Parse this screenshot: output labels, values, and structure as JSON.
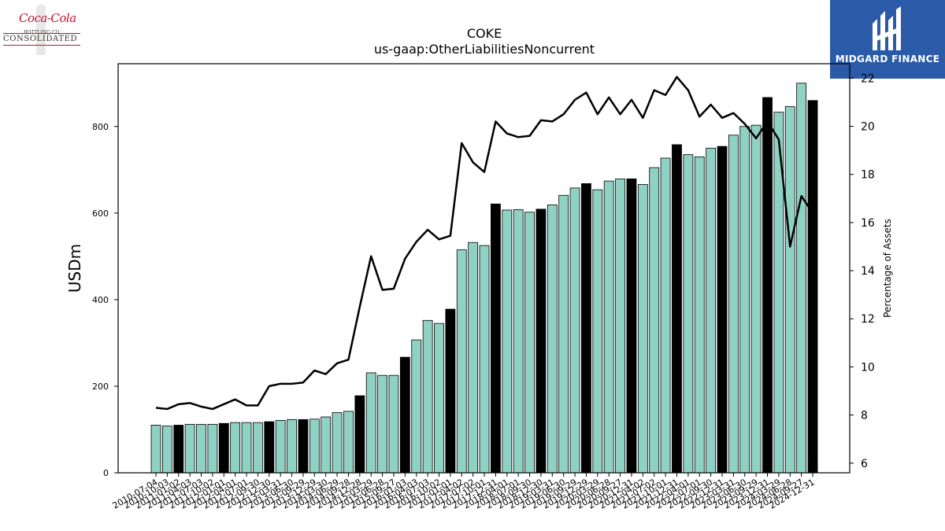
{
  "header": {
    "brand_left": {
      "script": "Coca-Cola",
      "sub": "BOTTLING CO.",
      "name": "CONSOLIDATED"
    },
    "brand_right": {
      "name": "MIDGARD FINANCE",
      "bg_color": "#2b5aa8",
      "icon": "mf-monogram-icon"
    }
  },
  "chart_data": {
    "type": "bar",
    "title": "COKE",
    "subtitle": "us-gaap:OtherLiabilitiesNoncurrent",
    "ylabel": "USDm",
    "y2label": "Percentage of Assets",
    "ylim": [
      0,
      945
    ],
    "y2lim": [
      5.6,
      22.6
    ],
    "yticks": [
      0,
      200,
      400,
      600,
      800
    ],
    "y2ticks": [
      6,
      8,
      10,
      12,
      14,
      16,
      18,
      20,
      22
    ],
    "grid": false,
    "colors": {
      "bar": "#8fd2c4",
      "bar_highlight": "#000000",
      "line": "#000000",
      "edge": "#000000"
    },
    "categories": [
      "2010-07-04",
      "2010-10-03",
      "2011-01-02",
      "2011-04-03",
      "2011-07-03",
      "2011-10-02",
      "2012-01-01",
      "2012-04-01",
      "2012-07-01",
      "2012-09-30",
      "2012-12-30",
      "2013-03-31",
      "2013-06-30",
      "2013-09-29",
      "2013-12-29",
      "2014-03-30",
      "2014-06-29",
      "2014-09-28",
      "2014-12-28",
      "2015-03-29",
      "2015-06-28",
      "2015-09-27",
      "2016-01-03",
      "2016-04-03",
      "2016-07-03",
      "2016-10-02",
      "2017-01-01",
      "2017-04-02",
      "2017-07-02",
      "2017-10-01",
      "2017-12-31",
      "2018-04-01",
      "2018-07-01",
      "2018-09-30",
      "2018-12-30",
      "2019-03-31",
      "2019-06-30",
      "2019-09-29",
      "2019-12-29",
      "2020-03-29",
      "2020-06-28",
      "2020-09-27",
      "2020-12-31",
      "2021-04-02",
      "2021-07-02",
      "2021-10-01",
      "2021-12-31",
      "2022-04-01",
      "2022-07-01",
      "2022-09-30",
      "2022-12-31",
      "2023-03-31",
      "2023-06-30",
      "2023-09-29",
      "2023-12-31",
      "2024-03-29",
      "2024-06-28",
      "2024-09-27",
      "2024-12-31"
    ],
    "tick_labels": [
      "2010-07-04",
      "2010-10-03",
      "2011-01-02",
      "2011-04-03",
      "2011-07-03",
      "2011-10-02",
      "2012-01-01",
      "2012-04-01",
      "2012-07-01",
      "2012-09-30",
      "2012-12-30",
      "2013-03-31",
      "2013-06-30",
      "2013-09-29",
      "2013-12-29",
      "2014-03-30",
      "2014-06-29",
      "2014-09-28",
      "2014-12-28",
      "2015-03-29",
      "2015-06-28",
      "2015-09-27",
      "2016-01-03",
      "2016-04-03",
      "2016-07-03",
      "2016-10-02",
      "2017-01-01",
      "2017-04-02",
      "2017-07-02",
      "2017-10-01",
      "2017-12-31",
      "2018-04-01",
      "2018-07-01",
      "2018-09-30",
      "2018-12-30",
      "2019-03-31",
      "2019-06-30",
      "2019-09-29",
      "2019-12-29",
      "2020-03-29",
      "2020-06-28",
      "2020-09-27",
      "2020-12-31",
      "2021-04-02",
      "2021-07-02",
      "2021-10-01",
      "2021-12-31",
      "2022-04-01",
      "2022-07-01",
      "2022-09-30",
      "2022-12-31",
      "2023-03-31",
      "2023-06-30",
      "2023-09-29",
      "2023-12-31",
      "2024-03-29",
      "2024-06-28",
      "2024-09-27",
      "2024-12-31"
    ],
    "series": [
      {
        "type": "bar",
        "axis": "left",
        "values": [
          110,
          108,
          110,
          112,
          112,
          112,
          114,
          116,
          116,
          116,
          118,
          121,
          123,
          123,
          124,
          129,
          139,
          142,
          178,
          231,
          225,
          225,
          267,
          307,
          352,
          345,
          378,
          515,
          532,
          525,
          621,
          607,
          608,
          602,
          609,
          619,
          641,
          658,
          668,
          654,
          674,
          679,
          679,
          666,
          705,
          727,
          758,
          735,
          730,
          750,
          754,
          780,
          800,
          803,
          867,
          833,
          846,
          900,
          860
        ],
        "highlight": [
          false,
          false,
          true,
          false,
          false,
          false,
          true,
          false,
          false,
          false,
          true,
          false,
          false,
          true,
          false,
          false,
          false,
          false,
          true,
          false,
          false,
          false,
          true,
          false,
          false,
          false,
          true,
          false,
          false,
          false,
          true,
          false,
          false,
          false,
          true,
          false,
          false,
          false,
          true,
          false,
          false,
          false,
          true,
          false,
          false,
          false,
          true,
          false,
          false,
          false,
          true,
          false,
          false,
          false,
          true,
          false,
          false,
          false,
          true
        ]
      },
      {
        "type": "line",
        "axis": "right",
        "values": [
          8.3,
          8.25,
          8.45,
          8.5,
          8.35,
          8.25,
          8.45,
          8.65,
          8.4,
          8.4,
          9.2,
          9.3,
          9.3,
          9.35,
          9.85,
          9.7,
          10.15,
          10.3,
          12.5,
          14.6,
          13.2,
          13.25,
          14.5,
          15.2,
          15.7,
          15.3,
          15.45,
          19.3,
          18.5,
          18.1,
          20.2,
          19.7,
          19.55,
          19.6,
          20.25,
          20.2,
          20.5,
          21.1,
          21.4,
          20.5,
          21.2,
          20.5,
          21.1,
          20.35,
          21.5,
          21.3,
          22.05,
          21.5,
          20.4,
          20.9,
          20.35,
          20.55,
          20.1,
          19.5,
          20.2,
          19.45,
          15.0,
          17.1,
          16.4
        ]
      }
    ]
  }
}
